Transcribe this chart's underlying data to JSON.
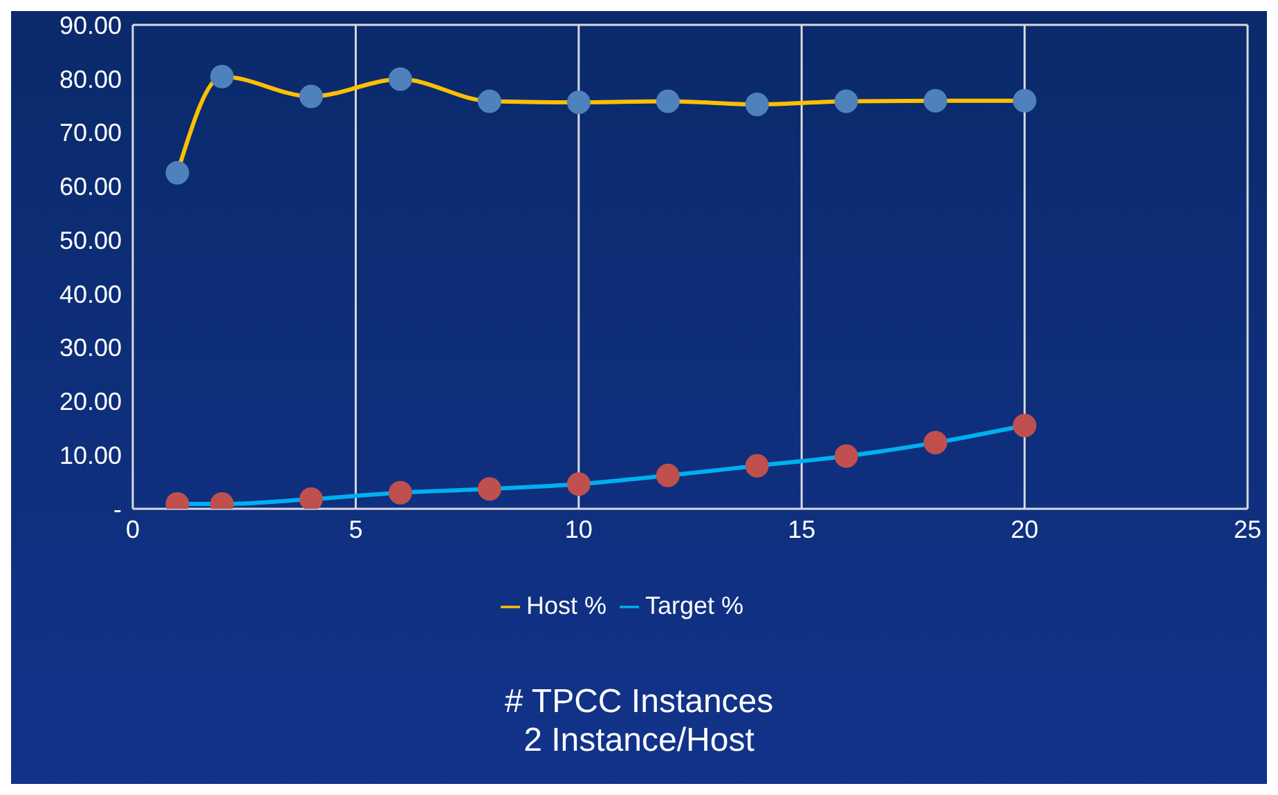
{
  "chart_data": {
    "type": "line",
    "xlabel": "# TPCC Instances\n2 Instance/Host",
    "x": [
      1,
      2,
      4,
      6,
      8,
      10,
      12,
      14,
      16,
      18,
      20
    ],
    "series": [
      {
        "name": "Host %",
        "color": "#ffc000",
        "values": [
          62.5,
          80.4,
          76.7,
          79.9,
          75.8,
          75.6,
          75.8,
          75.2,
          75.8,
          75.9,
          75.9
        ]
      },
      {
        "name": "Target %",
        "color": "#00b0f0",
        "values": [
          0.9,
          0.9,
          1.8,
          3.0,
          3.7,
          4.6,
          6.2,
          8.0,
          9.8,
          12.3,
          15.5
        ]
      }
    ],
    "xlim": [
      0,
      25
    ],
    "xticks": [
      0,
      5,
      10,
      15,
      20,
      25
    ],
    "ylim": [
      0,
      90
    ],
    "yticks": [
      {
        "value": 0,
        "label": "-"
      },
      {
        "value": 10,
        "label": "10.00"
      },
      {
        "value": 20,
        "label": "20.00"
      },
      {
        "value": 30,
        "label": "30.00"
      },
      {
        "value": 40,
        "label": "40.00"
      },
      {
        "value": 50,
        "label": "50.00"
      },
      {
        "value": 60,
        "label": "60.00"
      },
      {
        "value": 70,
        "label": "70.00"
      },
      {
        "value": 80,
        "label": "80.00"
      },
      {
        "value": 90,
        "label": "90.00"
      }
    ],
    "grid": true,
    "legend": "bottom",
    "marker": "circle",
    "line_style": "solid"
  }
}
